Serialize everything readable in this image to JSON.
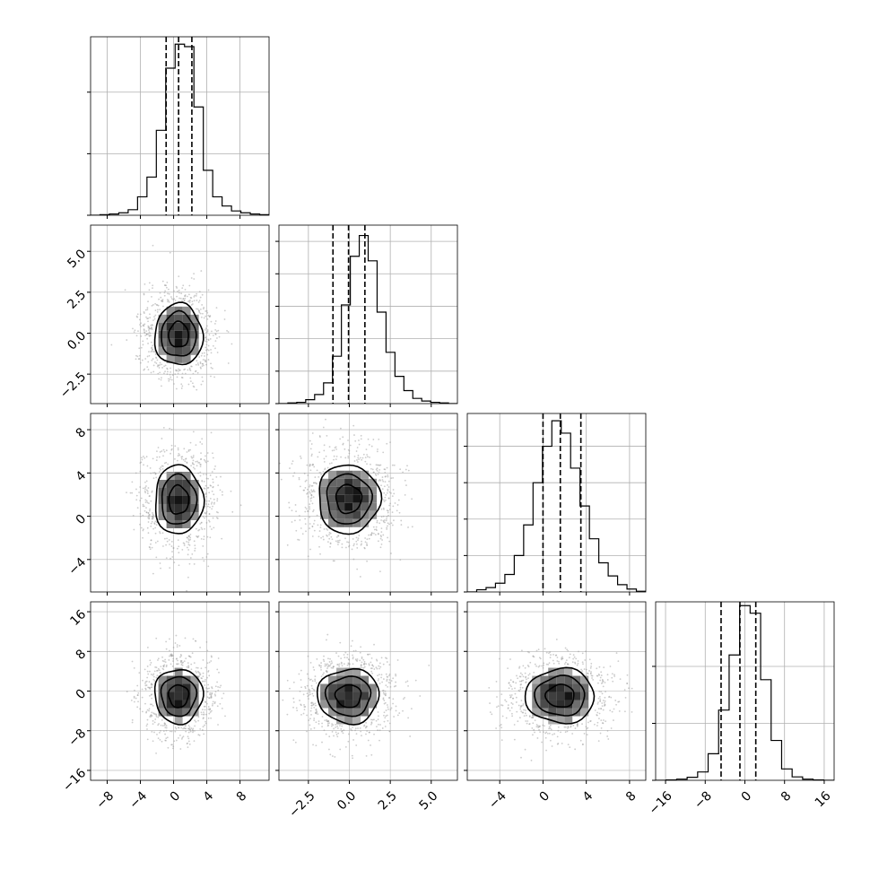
{
  "chart_data": {
    "type": "corner",
    "title": "",
    "n_params": 4,
    "grid": true,
    "colors": {
      "line": "#000000",
      "grid": "#b0b0b0",
      "scatter": "#9a9a9a"
    },
    "params": [
      {
        "label": "",
        "range": [
          -10,
          11.5
        ],
        "ticks": [
          -8,
          -4,
          0,
          4,
          8
        ],
        "tick_labels": [
          "−8",
          "−4",
          "0",
          "4",
          "8"
        ],
        "hist": [
          0,
          1,
          2,
          4,
          9,
          30,
          62,
          138,
          239,
          278,
          274,
          176,
          73,
          30,
          15,
          7,
          4,
          2,
          1
        ],
        "hist_max": 290,
        "hist_yticks": [
          0,
          100,
          200
        ],
        "quantiles": [
          -0.9,
          0.6,
          2.2
        ]
      },
      {
        "label": "",
        "range": [
          -4.3,
          6.6
        ],
        "ticks": [
          -2.5,
          0.0,
          2.5,
          5.0
        ],
        "tick_labels": [
          "−2.5",
          "0.0",
          "2.5",
          "5.0"
        ],
        "hist": [
          0,
          1,
          2,
          6,
          14,
          32,
          73,
          152,
          227,
          259,
          220,
          141,
          79,
          42,
          20,
          8,
          4,
          2,
          1,
          0
        ],
        "hist_max": 275,
        "hist_yticks": [
          0,
          50,
          100,
          150,
          200,
          250
        ],
        "quantiles": [
          -1.0,
          -0.05,
          0.95
        ]
      },
      {
        "label": "",
        "range": [
          -7,
          9.5
        ],
        "ticks": [
          -4,
          0,
          4,
          8
        ],
        "tick_labels": [
          "−4",
          "0",
          "4",
          "8"
        ],
        "hist": [
          0,
          3,
          6,
          12,
          24,
          50,
          92,
          150,
          200,
          235,
          218,
          170,
          118,
          73,
          40,
          22,
          10,
          4,
          1
        ],
        "hist_max": 245,
        "hist_yticks": [
          0,
          50,
          100,
          150,
          200
        ],
        "quantiles": [
          0.0,
          1.6,
          3.5
        ]
      },
      {
        "label": "",
        "range": [
          -18,
          18
        ],
        "ticks": [
          -16,
          -8,
          0,
          8,
          16
        ],
        "tick_labels": [
          "−16",
          "−8",
          "0",
          "8",
          "16"
        ],
        "hist": [
          0,
          1,
          3,
          8,
          22,
          70,
          185,
          330,
          460,
          440,
          265,
          105,
          30,
          9,
          3,
          1,
          0
        ],
        "hist_max": 470,
        "hist_yticks": [
          0,
          150,
          300
        ],
        "quantiles": [
          -4.8,
          -1.0,
          2.2
        ]
      }
    ],
    "pairs": [
      {
        "row": 1,
        "col": 0,
        "mean": [
          0.6,
          -0.1
        ],
        "sd": [
          2.0,
          1.3
        ]
      },
      {
        "row": 2,
        "col": 0,
        "mean": [
          0.6,
          1.5
        ],
        "sd": [
          2.0,
          2.2
        ]
      },
      {
        "row": 2,
        "col": 1,
        "mean": [
          -0.05,
          1.6
        ],
        "sd": [
          1.3,
          2.2
        ]
      },
      {
        "row": 3,
        "col": 0,
        "mean": [
          0.6,
          -1.0
        ],
        "sd": [
          2.0,
          3.8
        ]
      },
      {
        "row": 3,
        "col": 1,
        "mean": [
          -0.05,
          -1.0
        ],
        "sd": [
          1.3,
          3.8
        ]
      },
      {
        "row": 3,
        "col": 2,
        "mean": [
          1.6,
          -1.0
        ],
        "sd": [
          2.2,
          3.8
        ]
      }
    ]
  }
}
